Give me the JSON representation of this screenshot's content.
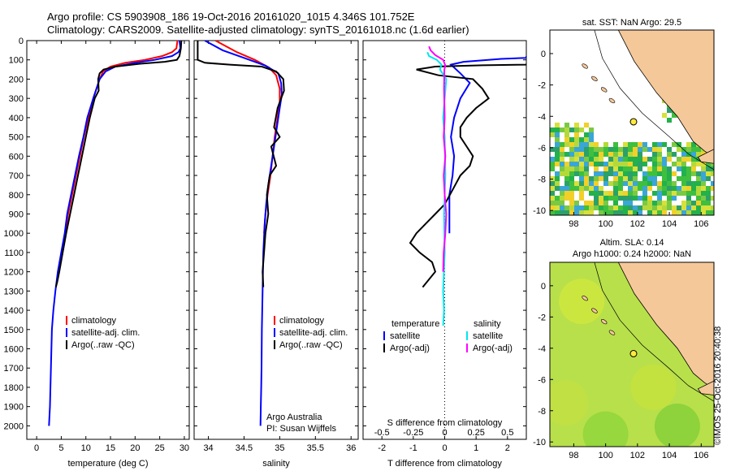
{
  "header": {
    "line1": "Argo profile: CS 5903908_186 19-Oct-2016 20161020_1015 4.346S 101.752E",
    "line2": "Climatology: CARS2009. Satellite-adjusted climatology: synTS_20161018.nc (1.6d earlier)"
  },
  "credit": "©IMOS 25-Oct-2016 20:40:38",
  "colors": {
    "climatology": "#ff0000",
    "satellite": "#0000ff",
    "argo": "#000000",
    "sat_salinity": "#00e5ee",
    "argo_salinity": "#ff00ff",
    "land": "#f5c89a"
  },
  "chart_data": [
    {
      "type": "line",
      "name_key": "temperature",
      "xlabel": "temperature (deg C)",
      "ylabel": "",
      "xlim": [
        -2,
        31
      ],
      "ylim": [
        2070,
        0
      ],
      "xticks": [
        "0",
        "5",
        "10",
        "15",
        "20",
        "25",
        "30"
      ],
      "yticks": [
        "0",
        "100",
        "200",
        "300",
        "400",
        "500",
        "600",
        "700",
        "800",
        "900",
        "1000",
        "1100",
        "1200",
        "1300",
        "1400",
        "1500",
        "1600",
        "1700",
        "1800",
        "1900",
        "2000"
      ],
      "legend": [
        "climatology",
        "satellite-adj. clim.",
        "Argo(..raw -QC)"
      ],
      "series": [
        {
          "name": "climatology",
          "x": [
            28.6,
            28.4,
            27.5,
            25.5,
            22,
            18,
            15,
            13.5,
            12.8,
            11.5,
            10.5,
            9.6,
            8.8,
            8.0,
            7.2,
            6.4,
            5.8
          ],
          "y": [
            0,
            40,
            60,
            80,
            100,
            115,
            135,
            160,
            200,
            300,
            400,
            500,
            600,
            700,
            800,
            900,
            1000
          ]
        },
        {
          "name": "satellite-adj. clim.",
          "x": [
            29.0,
            29.2,
            28.8,
            27.5,
            24,
            20,
            16,
            14,
            12.8,
            11.5,
            10.3,
            9.5,
            8.6,
            7.8,
            7.0,
            6.2,
            5.7,
            5.0,
            4.3,
            3.8,
            3.4,
            3.1,
            2.9,
            2.7,
            2.5
          ],
          "y": [
            0,
            40,
            60,
            80,
            100,
            115,
            135,
            160,
            200,
            300,
            400,
            500,
            600,
            700,
            800,
            900,
            1000,
            1100,
            1200,
            1300,
            1400,
            1500,
            1700,
            1900,
            2000
          ]
        },
        {
          "name": "Argo(..raw -QC)",
          "x": [
            29.4,
            29.3,
            29.0,
            28.5,
            26,
            21,
            16,
            13.6,
            12.8,
            12.5,
            12.6,
            11.8,
            10.8,
            10.0,
            9.2,
            8.4,
            7.6,
            6.8,
            6.0,
            5.3,
            4.6,
            4.2,
            3.9
          ],
          "y": [
            0,
            40,
            80,
            100,
            110,
            120,
            135,
            150,
            170,
            200,
            260,
            300,
            400,
            500,
            600,
            700,
            800,
            900,
            1000,
            1100,
            1200,
            1250,
            1280
          ]
        }
      ]
    },
    {
      "type": "line",
      "name_key": "salinity",
      "xlabel": "salinity",
      "xlim": [
        33.8,
        36.1
      ],
      "ylim": [
        2070,
        0
      ],
      "xticks": [
        "34",
        "34.5",
        "35",
        "35.5",
        "36"
      ],
      "legend": [
        "climatology",
        "satellite-adj. clim.",
        "Argo(..raw -QC)"
      ],
      "annotation": [
        "Argo Australia",
        "PI: Susan Wijffels"
      ],
      "series": [
        {
          "name": "climatology",
          "x": [
            34.1,
            34.4,
            34.65,
            34.85,
            34.95,
            35.0,
            35.0,
            34.97,
            34.93,
            34.9,
            34.87,
            34.83,
            34.8,
            34.78
          ],
          "y": [
            0,
            60,
            100,
            140,
            180,
            250,
            320,
            400,
            500,
            600,
            700,
            800,
            900,
            1000
          ]
        },
        {
          "name": "satellite-adj. clim.",
          "x": [
            33.95,
            34.2,
            34.5,
            34.8,
            34.98,
            35.02,
            35.03,
            35.0,
            34.96,
            34.92,
            34.88,
            34.84,
            34.81,
            34.79,
            34.77,
            34.76,
            34.75,
            34.745,
            34.74,
            34.735,
            34.73
          ],
          "y": [
            0,
            50,
            90,
            130,
            170,
            220,
            280,
            350,
            450,
            550,
            650,
            750,
            850,
            950,
            1100,
            1300,
            1500,
            1700,
            1800,
            1900,
            2000
          ]
        },
        {
          "name": "Argo(..raw -QC)",
          "x": [
            33.85,
            33.85,
            33.95,
            34.3,
            34.75,
            34.95,
            35.05,
            35.06,
            35.02,
            34.97,
            34.92,
            35.0,
            34.88,
            34.95,
            34.86,
            34.82,
            34.84,
            34.8,
            34.78,
            34.76,
            34.77
          ],
          "y": [
            0,
            100,
            115,
            125,
            135,
            160,
            200,
            260,
            300,
            350,
            450,
            500,
            550,
            650,
            700,
            800,
            900,
            1000,
            1100,
            1200,
            1280
          ]
        }
      ]
    },
    {
      "type": "line",
      "name_key": "difference",
      "xlabel_top": "S difference from climatology",
      "xlabel": "T difference from climatology",
      "xlim": [
        -2.6,
        2.6
      ],
      "ylim": [
        2070,
        0
      ],
      "xticks_T": [
        "-2",
        "-1",
        "0",
        "1",
        "2"
      ],
      "xticks_S": [
        "-0.5",
        "-0.25",
        "0",
        "0.25",
        "0.5"
      ],
      "legend_left": [
        "temperature",
        "satellite",
        "Argo(-adj)"
      ],
      "legend_right": [
        "salinity",
        "satellite",
        "Argo(-adj)"
      ],
      "series": [
        {
          "name": "temperature satellite",
          "x": [
            2.6,
            2.6,
            1.8,
            0.6,
            0.2,
            0.3,
            0.5,
            0.8,
            0.5,
            0.3,
            0.2,
            0.3,
            0.25,
            0.15,
            0.15
          ],
          "y": [
            80,
            90,
            95,
            110,
            125,
            140,
            170,
            220,
            300,
            400,
            500,
            600,
            700,
            800,
            1000
          ]
        },
        {
          "name": "temperature Argo(-adj)",
          "x": [
            2.6,
            2.6,
            1.2,
            -0.3,
            -0.9,
            -0.2,
            0.9,
            1.2,
            1.4,
            1.0,
            0.7,
            0.5,
            0.5,
            0.7,
            0.9,
            0.8,
            0.5,
            0.3,
            0.0,
            -0.3,
            -0.6,
            -0.9,
            -1.1,
            -0.8,
            -0.4,
            -0.3,
            -0.7
          ],
          "y": [
            120,
            125,
            128,
            135,
            150,
            180,
            200,
            250,
            300,
            350,
            400,
            450,
            500,
            550,
            600,
            650,
            700,
            760,
            850,
            900,
            950,
            1000,
            1050,
            1100,
            1150,
            1200,
            1280
          ]
        },
        {
          "name": "salinity satellite",
          "x": [
            -0.55,
            -0.5,
            -0.25,
            -0.1,
            -0.15,
            0.05,
            0.0,
            -0.05,
            0.0,
            0.02,
            -0.02,
            0.0,
            -0.05,
            -0.02,
            -0.05
          ],
          "y": [
            60,
            80,
            100,
            125,
            150,
            200,
            300,
            400,
            500,
            700,
            900,
            1100,
            1300,
            1400,
            1480
          ]
        },
        {
          "name": "salinity Argo(-adj)",
          "x": [
            -0.5,
            -0.45,
            -0.3,
            -0.05,
            0.02,
            -0.01,
            -0.02,
            0.0,
            -0.03,
            0.02,
            -0.03,
            0.0,
            0.05,
            0.02,
            -0.03,
            -0.05
          ],
          "y": [
            30,
            50,
            75,
            100,
            130,
            150,
            250,
            400,
            500,
            600,
            700,
            800,
            900,
            1000,
            1100,
            1200
          ]
        }
      ]
    },
    {
      "type": "heatmap",
      "name_key": "sst_map",
      "title": "sat. SST: NaN Argo: 29.5",
      "xticks": [
        "98",
        "100",
        "102",
        "104",
        "106"
      ],
      "yticks": [
        "0",
        "-2",
        "-4",
        "-6",
        "-8",
        "-10"
      ],
      "xlim": [
        96.5,
        106.8
      ],
      "ylim": [
        -10.3,
        1.5
      ],
      "argo_position": [
        101.752,
        -4.346
      ]
    },
    {
      "type": "heatmap",
      "name_key": "sla_map",
      "title": "Altim. SLA: 0.14",
      "subtitle": "Argo h1000: 0.24 h2000: NaN",
      "xticks": [
        "98",
        "100",
        "102",
        "104",
        "106"
      ],
      "yticks": [
        "0",
        "-2",
        "-4",
        "-6",
        "-8",
        "-10"
      ],
      "xlim": [
        96.5,
        106.8
      ],
      "ylim": [
        -10.3,
        1.5
      ],
      "argo_position": [
        101.752,
        -4.346
      ]
    }
  ]
}
